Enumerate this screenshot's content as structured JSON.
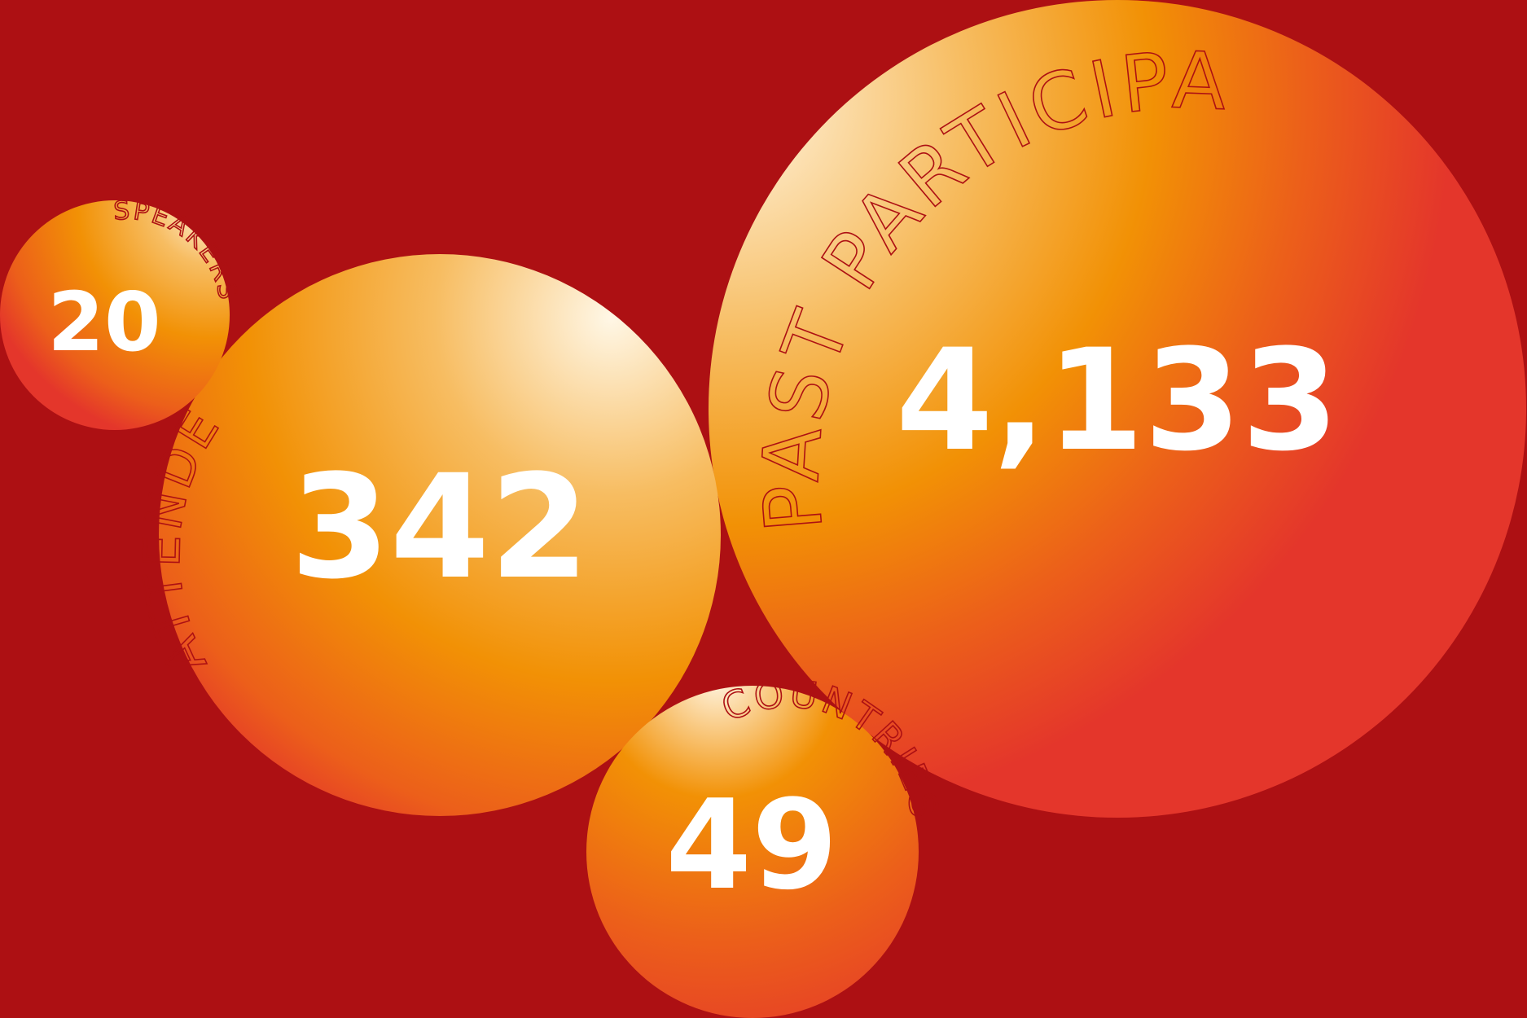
{
  "background_color": "#ad1013",
  "label_color": "#ad1013",
  "gradient_colors": [
    "#fff7e6",
    "#f7bd62",
    "#f29105",
    "#ec5f1a",
    "#e4362b"
  ],
  "stats": [
    {
      "id": "speakers",
      "value": "20",
      "label": "SPEAKERS"
    },
    {
      "id": "attendees",
      "value": "342",
      "label": "ATTENDEES"
    },
    {
      "id": "participants",
      "value": "4,133",
      "label": "PAST PARTICIPANTS"
    },
    {
      "id": "countries",
      "value": "49",
      "label": "COUNTRIES"
    }
  ]
}
